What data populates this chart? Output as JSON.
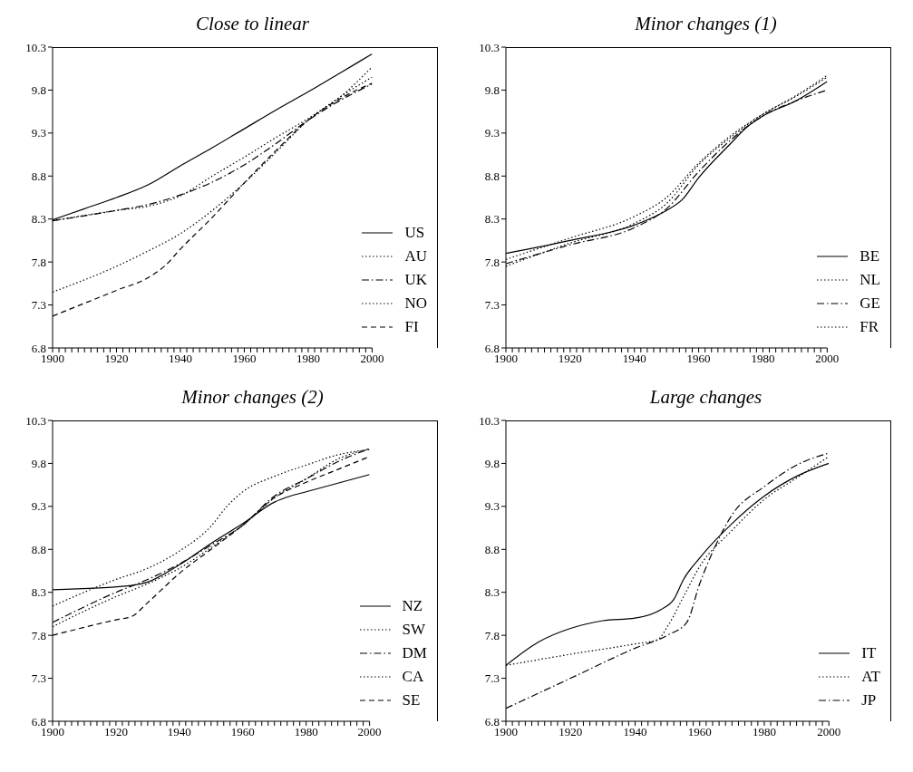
{
  "chart_data": [
    {
      "type": "line",
      "title": "Close to linear",
      "legend": "bottom right",
      "xlim": [
        1900,
        2000
      ],
      "ylim": [
        6.8,
        10.3
      ],
      "yticks": [
        6.8,
        7.3,
        7.8,
        8.3,
        8.8,
        9.3,
        9.8,
        10.3
      ],
      "xticks": [
        1900,
        {
          "value": 1902,
          "label": null
        },
        {
          "value": 1904,
          "label": null
        },
        {
          "value": 1906,
          "label": null
        },
        {
          "value": 1908,
          "label": null
        },
        {
          "value": 1910,
          "label": null
        },
        {
          "value": 1912,
          "label": null
        },
        {
          "value": 1914,
          "label": null
        },
        {
          "value": 1916,
          "label": null
        },
        {
          "value": 1918,
          "label": null
        },
        1920,
        {
          "value": 1922,
          "label": null
        },
        {
          "value": 1924,
          "label": null
        },
        {
          "value": 1926,
          "label": null
        },
        {
          "value": 1928,
          "label": null
        },
        {
          "value": 1930,
          "label": null
        },
        {
          "value": 1932,
          "label": null
        },
        {
          "value": 1934,
          "label": null
        },
        {
          "value": 1936,
          "label": null
        },
        {
          "value": 1938,
          "label": null
        },
        1940,
        {
          "value": 1942,
          "label": null
        },
        {
          "value": 1944,
          "label": null
        },
        {
          "value": 1946,
          "label": null
        },
        {
          "value": 1948,
          "label": null
        },
        {
          "value": 1950,
          "label": null
        },
        {
          "value": 1952,
          "label": null
        },
        {
          "value": 1954,
          "label": null
        },
        {
          "value": 1956,
          "label": null
        },
        {
          "value": 1958,
          "label": null
        },
        1960,
        {
          "value": 1962,
          "label": null
        },
        {
          "value": 1964,
          "label": null
        },
        {
          "value": 1966,
          "label": null
        },
        {
          "value": 1968,
          "label": null
        },
        {
          "value": 1970,
          "label": null
        },
        {
          "value": 1972,
          "label": null
        },
        {
          "value": 1974,
          "label": null
        },
        {
          "value": 1976,
          "label": null
        },
        {
          "value": 1978,
          "label": null
        },
        1980,
        {
          "value": 1982,
          "label": null
        },
        {
          "value": 1984,
          "label": null
        },
        {
          "value": 1986,
          "label": null
        },
        {
          "value": 1988,
          "label": null
        },
        {
          "value": 1990,
          "label": null
        },
        {
          "value": 1992,
          "label": null
        },
        {
          "value": 1994,
          "label": null
        },
        {
          "value": 1996,
          "label": null
        },
        {
          "value": 1998,
          "label": null
        },
        2000
      ],
      "series": [
        {
          "name": "US",
          "color": "#000000",
          "line_style": "solid",
          "x": [
            1900,
            1910,
            1920,
            1930,
            1940,
            1950,
            1960,
            1970,
            1980,
            1990,
            2000
          ],
          "values": [
            8.29,
            8.42,
            8.55,
            8.7,
            8.92,
            9.13,
            9.35,
            9.57,
            9.78,
            10.0,
            10.22
          ]
        },
        {
          "name": "AU",
          "color": "#000000",
          "line_style": "dotted",
          "x": [
            1900,
            1920,
            1930,
            1940,
            1950,
            1960,
            1970,
            1980,
            1990,
            2000
          ],
          "values": [
            8.28,
            8.4,
            8.45,
            8.57,
            8.8,
            9.02,
            9.25,
            9.47,
            9.72,
            10.07
          ]
        },
        {
          "name": "UK",
          "color": "#000000",
          "line_style": "dashdot",
          "x": [
            1900,
            1920,
            1930,
            1940,
            1950,
            1960,
            1970,
            1980,
            1990,
            2000
          ],
          "values": [
            8.28,
            8.4,
            8.47,
            8.58,
            8.73,
            8.93,
            9.18,
            9.45,
            9.68,
            9.87
          ]
        },
        {
          "name": "NO",
          "color": "#000000",
          "line_style": "dotted",
          "x": [
            1900,
            1920,
            1930,
            1940,
            1950,
            1960,
            1970,
            1980,
            1990,
            2000
          ],
          "values": [
            7.45,
            7.75,
            7.93,
            8.13,
            8.4,
            8.72,
            9.08,
            9.45,
            9.72,
            9.95
          ]
        },
        {
          "name": "FI",
          "color": "#000000",
          "line_style": "dashed",
          "x": [
            1900,
            1920,
            1930,
            1935,
            1940,
            1950,
            1960,
            1970,
            1980,
            1990,
            2000
          ],
          "values": [
            7.17,
            7.47,
            7.62,
            7.75,
            7.95,
            8.32,
            8.72,
            9.1,
            9.45,
            9.7,
            9.88
          ]
        }
      ]
    },
    {
      "type": "line",
      "title": "Minor changes (1)",
      "legend": "bottom right",
      "xlim": [
        1900,
        2000
      ],
      "ylim": [
        6.8,
        10.3
      ],
      "yticks": [
        6.8,
        7.3,
        7.8,
        8.3,
        8.8,
        9.3,
        9.8,
        10.3
      ],
      "xticks": [
        1900,
        {
          "value": 1902,
          "label": null
        },
        {
          "value": 1904,
          "label": null
        },
        {
          "value": 1906,
          "label": null
        },
        {
          "value": 1908,
          "label": null
        },
        {
          "value": 1910,
          "label": null
        },
        {
          "value": 1912,
          "label": null
        },
        {
          "value": 1914,
          "label": null
        },
        {
          "value": 1916,
          "label": null
        },
        {
          "value": 1918,
          "label": null
        },
        1920,
        {
          "value": 1922,
          "label": null
        },
        {
          "value": 1924,
          "label": null
        },
        {
          "value": 1926,
          "label": null
        },
        {
          "value": 1928,
          "label": null
        },
        {
          "value": 1930,
          "label": null
        },
        {
          "value": 1932,
          "label": null
        },
        {
          "value": 1934,
          "label": null
        },
        {
          "value": 1936,
          "label": null
        },
        {
          "value": 1938,
          "label": null
        },
        1940,
        {
          "value": 1942,
          "label": null
        },
        {
          "value": 1944,
          "label": null
        },
        {
          "value": 1946,
          "label": null
        },
        {
          "value": 1948,
          "label": null
        },
        {
          "value": 1950,
          "label": null
        },
        {
          "value": 1952,
          "label": null
        },
        {
          "value": 1954,
          "label": null
        },
        {
          "value": 1956,
          "label": null
        },
        {
          "value": 1958,
          "label": null
        },
        1960,
        {
          "value": 1962,
          "label": null
        },
        {
          "value": 1964,
          "label": null
        },
        {
          "value": 1966,
          "label": null
        },
        {
          "value": 1968,
          "label": null
        },
        {
          "value": 1970,
          "label": null
        },
        {
          "value": 1972,
          "label": null
        },
        {
          "value": 1974,
          "label": null
        },
        {
          "value": 1976,
          "label": null
        },
        {
          "value": 1978,
          "label": null
        },
        1980,
        {
          "value": 1982,
          "label": null
        },
        {
          "value": 1984,
          "label": null
        },
        {
          "value": 1986,
          "label": null
        },
        {
          "value": 1988,
          "label": null
        },
        {
          "value": 1990,
          "label": null
        },
        {
          "value": 1992,
          "label": null
        },
        {
          "value": 1994,
          "label": null
        },
        {
          "value": 1996,
          "label": null
        },
        {
          "value": 1998,
          "label": null
        },
        2000
      ],
      "series": [
        {
          "name": "BE",
          "color": "#000000",
          "line_style": "solid",
          "x": [
            1900,
            1920,
            1940,
            1950,
            1955,
            1960,
            1970,
            1975,
            1980,
            1990,
            2000
          ],
          "values": [
            7.9,
            8.05,
            8.23,
            8.4,
            8.53,
            8.78,
            9.18,
            9.37,
            9.5,
            9.67,
            9.9
          ]
        },
        {
          "name": "NL",
          "color": "#000000",
          "line_style": "dotted",
          "x": [
            1900,
            1920,
            1940,
            1950,
            1960,
            1970,
            1980,
            1990,
            2000
          ],
          "values": [
            7.83,
            8.08,
            8.33,
            8.55,
            8.95,
            9.27,
            9.52,
            9.73,
            9.97
          ]
        },
        {
          "name": "GE",
          "color": "#000000",
          "line_style": "dashdot",
          "x": [
            1900,
            1920,
            1940,
            1950,
            1960,
            1970,
            1980,
            1990,
            2000
          ],
          "values": [
            7.78,
            8.0,
            8.2,
            8.42,
            8.85,
            9.22,
            9.5,
            9.67,
            9.8
          ]
        },
        {
          "name": "FR",
          "color": "#000000",
          "line_style": "dotted",
          "x": [
            1900,
            1920,
            1940,
            1950,
            1960,
            1970,
            1980,
            1990,
            2000
          ],
          "values": [
            7.75,
            8.02,
            8.25,
            8.48,
            8.93,
            9.25,
            9.52,
            9.72,
            9.95
          ]
        }
      ]
    },
    {
      "type": "line",
      "title": "Minor changes (2)",
      "legend": "bottom right",
      "xlim": [
        1900,
        2000
      ],
      "ylim": [
        6.8,
        10.3
      ],
      "yticks": [
        6.8,
        7.3,
        7.8,
        8.3,
        8.8,
        9.3,
        9.8,
        10.3
      ],
      "xticks": [
        1900,
        {
          "value": 1902,
          "label": null
        },
        {
          "value": 1904,
          "label": null
        },
        {
          "value": 1906,
          "label": null
        },
        {
          "value": 1908,
          "label": null
        },
        {
          "value": 1910,
          "label": null
        },
        {
          "value": 1912,
          "label": null
        },
        {
          "value": 1914,
          "label": null
        },
        {
          "value": 1916,
          "label": null
        },
        {
          "value": 1918,
          "label": null
        },
        1920,
        {
          "value": 1922,
          "label": null
        },
        {
          "value": 1924,
          "label": null
        },
        {
          "value": 1926,
          "label": null
        },
        {
          "value": 1928,
          "label": null
        },
        {
          "value": 1930,
          "label": null
        },
        {
          "value": 1932,
          "label": null
        },
        {
          "value": 1934,
          "label": null
        },
        {
          "value": 1936,
          "label": null
        },
        {
          "value": 1938,
          "label": null
        },
        1940,
        {
          "value": 1942,
          "label": null
        },
        {
          "value": 1944,
          "label": null
        },
        {
          "value": 1946,
          "label": null
        },
        {
          "value": 1948,
          "label": null
        },
        {
          "value": 1950,
          "label": null
        },
        {
          "value": 1952,
          "label": null
        },
        {
          "value": 1954,
          "label": null
        },
        {
          "value": 1956,
          "label": null
        },
        {
          "value": 1958,
          "label": null
        },
        1960,
        {
          "value": 1962,
          "label": null
        },
        {
          "value": 1964,
          "label": null
        },
        {
          "value": 1966,
          "label": null
        },
        {
          "value": 1968,
          "label": null
        },
        {
          "value": 1970,
          "label": null
        },
        {
          "value": 1972,
          "label": null
        },
        {
          "value": 1974,
          "label": null
        },
        {
          "value": 1976,
          "label": null
        },
        {
          "value": 1978,
          "label": null
        },
        1980,
        {
          "value": 1982,
          "label": null
        },
        {
          "value": 1984,
          "label": null
        },
        {
          "value": 1986,
          "label": null
        },
        {
          "value": 1988,
          "label": null
        },
        {
          "value": 1990,
          "label": null
        },
        {
          "value": 1992,
          "label": null
        },
        {
          "value": 1994,
          "label": null
        },
        {
          "value": 1996,
          "label": null
        },
        {
          "value": 1998,
          "label": null
        },
        2000
      ],
      "series": [
        {
          "name": "NZ",
          "color": "#000000",
          "line_style": "solid",
          "x": [
            1900,
            1925,
            1930,
            1940,
            1950,
            1960,
            1970,
            1975,
            1980,
            1990,
            2000
          ],
          "values": [
            8.33,
            8.38,
            8.42,
            8.62,
            8.87,
            9.1,
            9.35,
            9.42,
            9.47,
            9.57,
            9.67
          ]
        },
        {
          "name": "SW",
          "color": "#000000",
          "line_style": "dotted",
          "x": [
            1900,
            1920,
            1930,
            1940,
            1950,
            1955,
            1960,
            1970,
            1980,
            1990,
            2000
          ],
          "values": [
            8.14,
            8.45,
            8.58,
            8.78,
            9.07,
            9.3,
            9.47,
            9.65,
            9.78,
            9.9,
            9.96
          ]
        },
        {
          "name": "DM",
          "color": "#000000",
          "line_style": "dashdot",
          "x": [
            1900,
            1920,
            1930,
            1940,
            1950,
            1960,
            1970,
            1980,
            1990,
            2000
          ],
          "values": [
            7.95,
            8.3,
            8.45,
            8.63,
            8.85,
            9.08,
            9.42,
            9.62,
            9.82,
            9.97
          ]
        },
        {
          "name": "CA",
          "color": "#000000",
          "line_style": "dotted",
          "x": [
            1900,
            1920,
            1930,
            1940,
            1950,
            1960,
            1970,
            1980,
            1990,
            2000
          ],
          "values": [
            7.9,
            8.25,
            8.4,
            8.58,
            8.82,
            9.08,
            9.4,
            9.62,
            9.85,
            9.97
          ]
        },
        {
          "name": "SE",
          "color": "#000000",
          "line_style": "dashed",
          "x": [
            1900,
            1920,
            1925,
            1930,
            1940,
            1950,
            1960,
            1970,
            1980,
            1990,
            2000
          ],
          "values": [
            7.8,
            7.98,
            8.02,
            8.18,
            8.52,
            8.8,
            9.08,
            9.4,
            9.58,
            9.73,
            9.88
          ]
        }
      ]
    },
    {
      "type": "line",
      "title": "Large changes",
      "legend": "bottom right",
      "xlim": [
        1900,
        2000
      ],
      "ylim": [
        6.8,
        10.3
      ],
      "yticks": [
        6.8,
        7.3,
        7.8,
        8.3,
        8.8,
        9.3,
        9.8,
        10.3
      ],
      "xticks": [
        1900,
        {
          "value": 1902,
          "label": null
        },
        {
          "value": 1904,
          "label": null
        },
        {
          "value": 1906,
          "label": null
        },
        {
          "value": 1908,
          "label": null
        },
        {
          "value": 1910,
          "label": null
        },
        {
          "value": 1912,
          "label": null
        },
        {
          "value": 1914,
          "label": null
        },
        {
          "value": 1916,
          "label": null
        },
        {
          "value": 1918,
          "label": null
        },
        1920,
        {
          "value": 1922,
          "label": null
        },
        {
          "value": 1924,
          "label": null
        },
        {
          "value": 1926,
          "label": null
        },
        {
          "value": 1928,
          "label": null
        },
        {
          "value": 1930,
          "label": null
        },
        {
          "value": 1932,
          "label": null
        },
        {
          "value": 1934,
          "label": null
        },
        {
          "value": 1936,
          "label": null
        },
        {
          "value": 1938,
          "label": null
        },
        1940,
        {
          "value": 1942,
          "label": null
        },
        {
          "value": 1944,
          "label": null
        },
        {
          "value": 1946,
          "label": null
        },
        {
          "value": 1948,
          "label": null
        },
        {
          "value": 1950,
          "label": null
        },
        {
          "value": 1952,
          "label": null
        },
        {
          "value": 1954,
          "label": null
        },
        {
          "value": 1956,
          "label": null
        },
        {
          "value": 1958,
          "label": null
        },
        1960,
        {
          "value": 1962,
          "label": null
        },
        {
          "value": 1964,
          "label": null
        },
        {
          "value": 1966,
          "label": null
        },
        {
          "value": 1968,
          "label": null
        },
        {
          "value": 1970,
          "label": null
        },
        {
          "value": 1972,
          "label": null
        },
        {
          "value": 1974,
          "label": null
        },
        {
          "value": 1976,
          "label": null
        },
        {
          "value": 1978,
          "label": null
        },
        1980,
        {
          "value": 1982,
          "label": null
        },
        {
          "value": 1984,
          "label": null
        },
        {
          "value": 1986,
          "label": null
        },
        {
          "value": 1988,
          "label": null
        },
        {
          "value": 1990,
          "label": null
        },
        {
          "value": 1992,
          "label": null
        },
        {
          "value": 1994,
          "label": null
        },
        {
          "value": 1996,
          "label": null
        },
        {
          "value": 1998,
          "label": null
        },
        2000
      ],
      "series": [
        {
          "name": "IT",
          "color": "#000000",
          "line_style": "solid",
          "x": [
            1900,
            1910,
            1920,
            1930,
            1940,
            1948,
            1952,
            1955,
            1960,
            1970,
            1980,
            1990,
            2000
          ],
          "values": [
            7.45,
            7.72,
            7.88,
            7.97,
            8.0,
            8.1,
            8.22,
            8.45,
            8.7,
            9.1,
            9.42,
            9.65,
            9.8
          ]
        },
        {
          "name": "AT",
          "color": "#000000",
          "line_style": "dotted",
          "x": [
            1900,
            1920,
            1940,
            1947,
            1950,
            1955,
            1960,
            1970,
            1980,
            1990,
            2000
          ],
          "values": [
            7.45,
            7.58,
            7.7,
            7.75,
            7.9,
            8.25,
            8.6,
            9.02,
            9.38,
            9.63,
            9.88
          ]
        },
        {
          "name": "JP",
          "color": "#000000",
          "line_style": "dashdot",
          "x": [
            1900,
            1920,
            1940,
            1950,
            1956,
            1960,
            1965,
            1970,
            1980,
            1990,
            2000
          ],
          "values": [
            6.95,
            7.3,
            7.65,
            7.8,
            7.95,
            8.4,
            8.85,
            9.2,
            9.53,
            9.78,
            9.92
          ]
        }
      ]
    }
  ]
}
